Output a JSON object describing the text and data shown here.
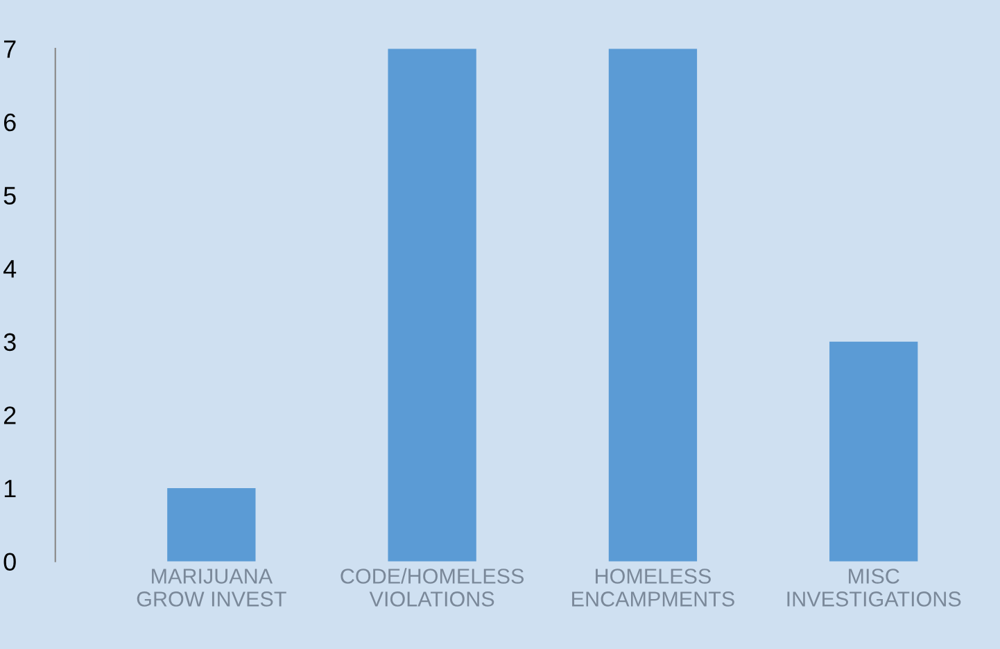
{
  "chart_data": {
    "type": "bar",
    "categories": [
      "MARIJUANA\nGROW INVEST",
      "CODE/HOMELESS\nVIOLATIONS",
      "HOMELESS\nENCAMPMENTS",
      "MISC\nINVESTIGATIONS"
    ],
    "values": [
      1,
      7,
      7,
      3
    ],
    "color": "#5b9bd5",
    "ylim": [
      0,
      7
    ],
    "yticks": [
      0,
      1,
      2,
      3,
      4,
      5,
      6,
      7
    ],
    "grid": false
  }
}
